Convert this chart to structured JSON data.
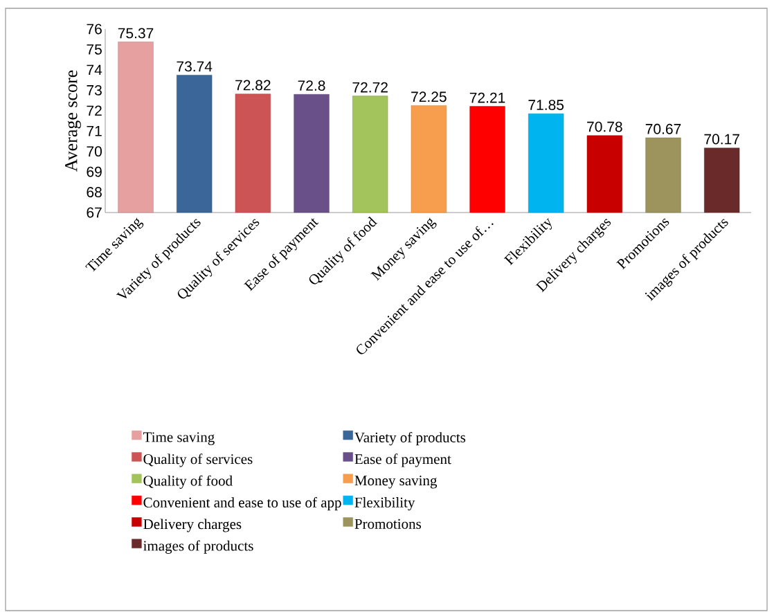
{
  "chart_data": {
    "type": "bar",
    "ylabel": "Average score",
    "categories": [
      "Time saving",
      "Variety of products",
      "Quality of services",
      "Ease of payment",
      "Quality of food",
      "Money saving",
      "Convenient and ease to use of…",
      "Flexibility",
      "Delivery charges",
      "Promotions",
      "images of products"
    ],
    "series": [
      {
        "name": "Time saving",
        "color": "#e6a0a0",
        "values": [
          75.37,
          null,
          null,
          null,
          null,
          null,
          null,
          null,
          null,
          null,
          null
        ]
      },
      {
        "name": "Variety of products",
        "color": "#3b6699",
        "values": [
          null,
          73.74,
          null,
          null,
          null,
          null,
          null,
          null,
          null,
          null,
          null
        ]
      },
      {
        "name": "Quality of services",
        "color": "#cd5454",
        "values": [
          null,
          null,
          72.82,
          null,
          null,
          null,
          null,
          null,
          null,
          null,
          null
        ]
      },
      {
        "name": "Ease of payment",
        "color": "#6a5089",
        "values": [
          null,
          null,
          null,
          72.8,
          null,
          null,
          null,
          null,
          null,
          null,
          null
        ]
      },
      {
        "name": "Quality of food",
        "color": "#a3c35d",
        "values": [
          null,
          null,
          null,
          null,
          72.72,
          null,
          null,
          null,
          null,
          null,
          null
        ]
      },
      {
        "name": "Money saving",
        "color": "#f79d4e",
        "values": [
          null,
          null,
          null,
          null,
          null,
          72.25,
          null,
          null,
          null,
          null,
          null
        ]
      },
      {
        "name": "Convenient and ease to use of app",
        "color": "#ff0000",
        "values": [
          null,
          null,
          null,
          null,
          null,
          null,
          72.21,
          null,
          null,
          null,
          null
        ]
      },
      {
        "name": "Flexibility",
        "color": "#00b4f0",
        "values": [
          null,
          null,
          null,
          null,
          null,
          null,
          null,
          71.85,
          null,
          null,
          null
        ]
      },
      {
        "name": "Delivery charges",
        "color": "#c80000",
        "values": [
          null,
          null,
          null,
          null,
          null,
          null,
          null,
          null,
          70.78,
          null,
          null
        ]
      },
      {
        "name": "Promotions",
        "color": "#9c945c",
        "values": [
          null,
          null,
          null,
          null,
          null,
          null,
          null,
          null,
          null,
          70.67,
          null
        ]
      },
      {
        "name": "images of products",
        "color": "#6b2a2a",
        "values": [
          null,
          null,
          null,
          null,
          null,
          null,
          null,
          null,
          null,
          null,
          70.17
        ]
      }
    ],
    "ylim": [
      67,
      76
    ],
    "yticks": [
      67,
      68,
      69,
      70,
      71,
      72,
      73,
      74,
      75,
      76
    ],
    "data_labels": true,
    "legend": "bottom"
  }
}
